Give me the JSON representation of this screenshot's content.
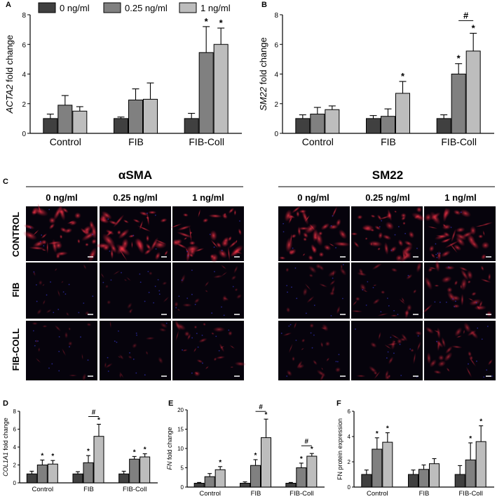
{
  "colors": {
    "zero": "#404040",
    "quarter": "#808080",
    "one": "#bdbdbd",
    "scale_bar": "#ffffff"
  },
  "legend": [
    "0 ng/ml",
    "0.25 ng/ml",
    "1 ng/ml"
  ],
  "chart_data": [
    {
      "panel": "A",
      "type": "bar",
      "categories": [
        "Control",
        "FIB",
        "FIB-Coll"
      ],
      "ylabel": "ACTA2 fold change",
      "ylabel_italic": "ACTA2",
      "ylabel_rest": " fold change",
      "ylim": [
        0,
        8
      ],
      "yticks": [
        0,
        2,
        4,
        6,
        8
      ],
      "series": [
        {
          "name": "0 ng/ml",
          "values": [
            1.0,
            1.0,
            1.0
          ],
          "errors": [
            0.3,
            0.1,
            0.35
          ]
        },
        {
          "name": "0.25 ng/ml",
          "values": [
            1.9,
            2.25,
            5.45
          ],
          "errors": [
            0.65,
            0.75,
            1.75
          ]
        },
        {
          "name": "1 ng/ml",
          "values": [
            1.5,
            2.3,
            6.0
          ],
          "errors": [
            0.3,
            1.1,
            1.1
          ]
        }
      ],
      "annotations": [
        {
          "text": "*",
          "category": 2,
          "series": 1
        },
        {
          "text": "*",
          "category": 2,
          "series": 2
        }
      ]
    },
    {
      "panel": "B",
      "type": "bar",
      "categories": [
        "Control",
        "FIB",
        "FIB-Coll"
      ],
      "ylabel": "SM22 fold change",
      "ylabel_italic": "SM22",
      "ylabel_rest": " fold change",
      "ylim": [
        0,
        8
      ],
      "yticks": [
        0,
        2,
        4,
        6,
        8
      ],
      "series": [
        {
          "name": "0 ng/ml",
          "values": [
            1.0,
            1.0,
            1.0
          ],
          "errors": [
            0.25,
            0.2,
            0.25
          ]
        },
        {
          "name": "0.25 ng/ml",
          "values": [
            1.3,
            1.15,
            4.0
          ],
          "errors": [
            0.45,
            0.5,
            0.7
          ]
        },
        {
          "name": "1 ng/ml",
          "values": [
            1.6,
            2.7,
            5.55
          ],
          "errors": [
            0.25,
            0.8,
            1.2
          ]
        }
      ],
      "annotations": [
        {
          "text": "*",
          "category": 1,
          "series": 2
        },
        {
          "text": "*",
          "category": 2,
          "series": 1
        },
        {
          "text": "*",
          "category": 2,
          "series": 2
        },
        {
          "text": "#",
          "category": 2,
          "bracket": [
            1,
            2
          ]
        }
      ]
    },
    {
      "panel": "D",
      "type": "bar",
      "categories": [
        "Control",
        "FIB",
        "FIB-Coll"
      ],
      "ylabel": "COL1A1 fold change",
      "ylabel_italic": "COL1A1",
      "ylabel_rest": " fold change",
      "ylim": [
        0,
        8
      ],
      "yticks": [
        0,
        2,
        4,
        6,
        8
      ],
      "series": [
        {
          "name": "0 ng/ml",
          "values": [
            1.0,
            1.0,
            1.0
          ],
          "errors": [
            0.3,
            0.25,
            0.3
          ]
        },
        {
          "name": "0.25 ng/ml",
          "values": [
            2.0,
            2.25,
            2.65
          ],
          "errors": [
            0.55,
            0.8,
            0.3
          ]
        },
        {
          "name": "1 ng/ml",
          "values": [
            2.1,
            5.2,
            2.9
          ],
          "errors": [
            0.4,
            1.35,
            0.35
          ]
        }
      ],
      "annotations": [
        {
          "text": "*",
          "category": 0,
          "series": 1
        },
        {
          "text": "*",
          "category": 0,
          "series": 2
        },
        {
          "text": "*",
          "category": 1,
          "series": 1
        },
        {
          "text": "*",
          "category": 1,
          "series": 2
        },
        {
          "text": "*",
          "category": 2,
          "series": 1
        },
        {
          "text": "*",
          "category": 2,
          "series": 2
        },
        {
          "text": "#",
          "category": 1,
          "bracket": [
            1,
            2
          ]
        }
      ]
    },
    {
      "panel": "E",
      "type": "bar",
      "categories": [
        "Control",
        "FIB",
        "FIB-Coll"
      ],
      "ylabel": "FN fold change",
      "ylabel_italic": "FN",
      "ylabel_rest": " fold change",
      "ylim": [
        0,
        20
      ],
      "yticks": [
        0,
        5,
        10,
        15,
        20
      ],
      "series": [
        {
          "name": "0 ng/ml",
          "values": [
            1.0,
            1.0,
            1.0
          ],
          "errors": [
            0.2,
            0.35,
            0.2
          ]
        },
        {
          "name": "0.25 ng/ml",
          "values": [
            2.7,
            5.6,
            5.0
          ],
          "errors": [
            0.8,
            1.5,
            1.2
          ]
        },
        {
          "name": "1 ng/ml",
          "values": [
            4.5,
            12.8,
            8.0
          ],
          "errors": [
            0.8,
            4.8,
            0.7
          ]
        }
      ],
      "annotations": [
        {
          "text": "*",
          "category": 0,
          "series": 2
        },
        {
          "text": "*",
          "category": 1,
          "series": 1
        },
        {
          "text": "*",
          "category": 1,
          "series": 2
        },
        {
          "text": "*",
          "category": 2,
          "series": 1
        },
        {
          "text": "*",
          "category": 2,
          "series": 2
        },
        {
          "text": "#",
          "category": 1,
          "bracket": [
            1,
            2
          ]
        },
        {
          "text": "#",
          "category": 2,
          "bracket": [
            1,
            2
          ]
        }
      ]
    },
    {
      "panel": "F",
      "type": "bar",
      "categories": [
        "Control",
        "FIB",
        "FIB-Coll"
      ],
      "ylabel": "FN protein expression",
      "ylabel_italic": "",
      "ylabel_rest": "FN protein expression",
      "ylim": [
        0,
        6
      ],
      "yticks": [
        0,
        2,
        4,
        6
      ],
      "series": [
        {
          "name": "0 ng/ml",
          "values": [
            1.0,
            1.0,
            1.0
          ],
          "errors": [
            0.35,
            0.35,
            0.7
          ]
        },
        {
          "name": "0.25 ng/ml",
          "values": [
            3.0,
            1.4,
            2.15
          ],
          "errors": [
            0.9,
            0.35,
            1.35
          ]
        },
        {
          "name": "1 ng/ml",
          "values": [
            3.55,
            1.85,
            3.6
          ],
          "errors": [
            0.75,
            0.4,
            1.25
          ]
        }
      ],
      "annotations": [
        {
          "text": "*",
          "category": 0,
          "series": 1
        },
        {
          "text": "*",
          "category": 0,
          "series": 2
        },
        {
          "text": "*",
          "category": 2,
          "series": 1
        },
        {
          "text": "*",
          "category": 2,
          "series": 2
        }
      ]
    }
  ],
  "panel_c": {
    "letter": "C",
    "groups": [
      "αSMA",
      "SM22"
    ],
    "columns": [
      "0 ng/ml",
      "0.25 ng/ml",
      "1 ng/ml"
    ],
    "rows": [
      "CONTROL",
      "FIB",
      "FIB-COLL"
    ],
    "brightness": {
      "alpha_sma": [
        [
          0.85,
          0.85,
          0.85
        ],
        [
          0.15,
          0.15,
          0.25
        ],
        [
          0.2,
          0.2,
          0.45
        ]
      ],
      "sm22": [
        [
          0.8,
          0.75,
          0.75
        ],
        [
          0.3,
          0.4,
          0.6
        ],
        [
          0.35,
          0.4,
          0.5
        ]
      ]
    }
  }
}
